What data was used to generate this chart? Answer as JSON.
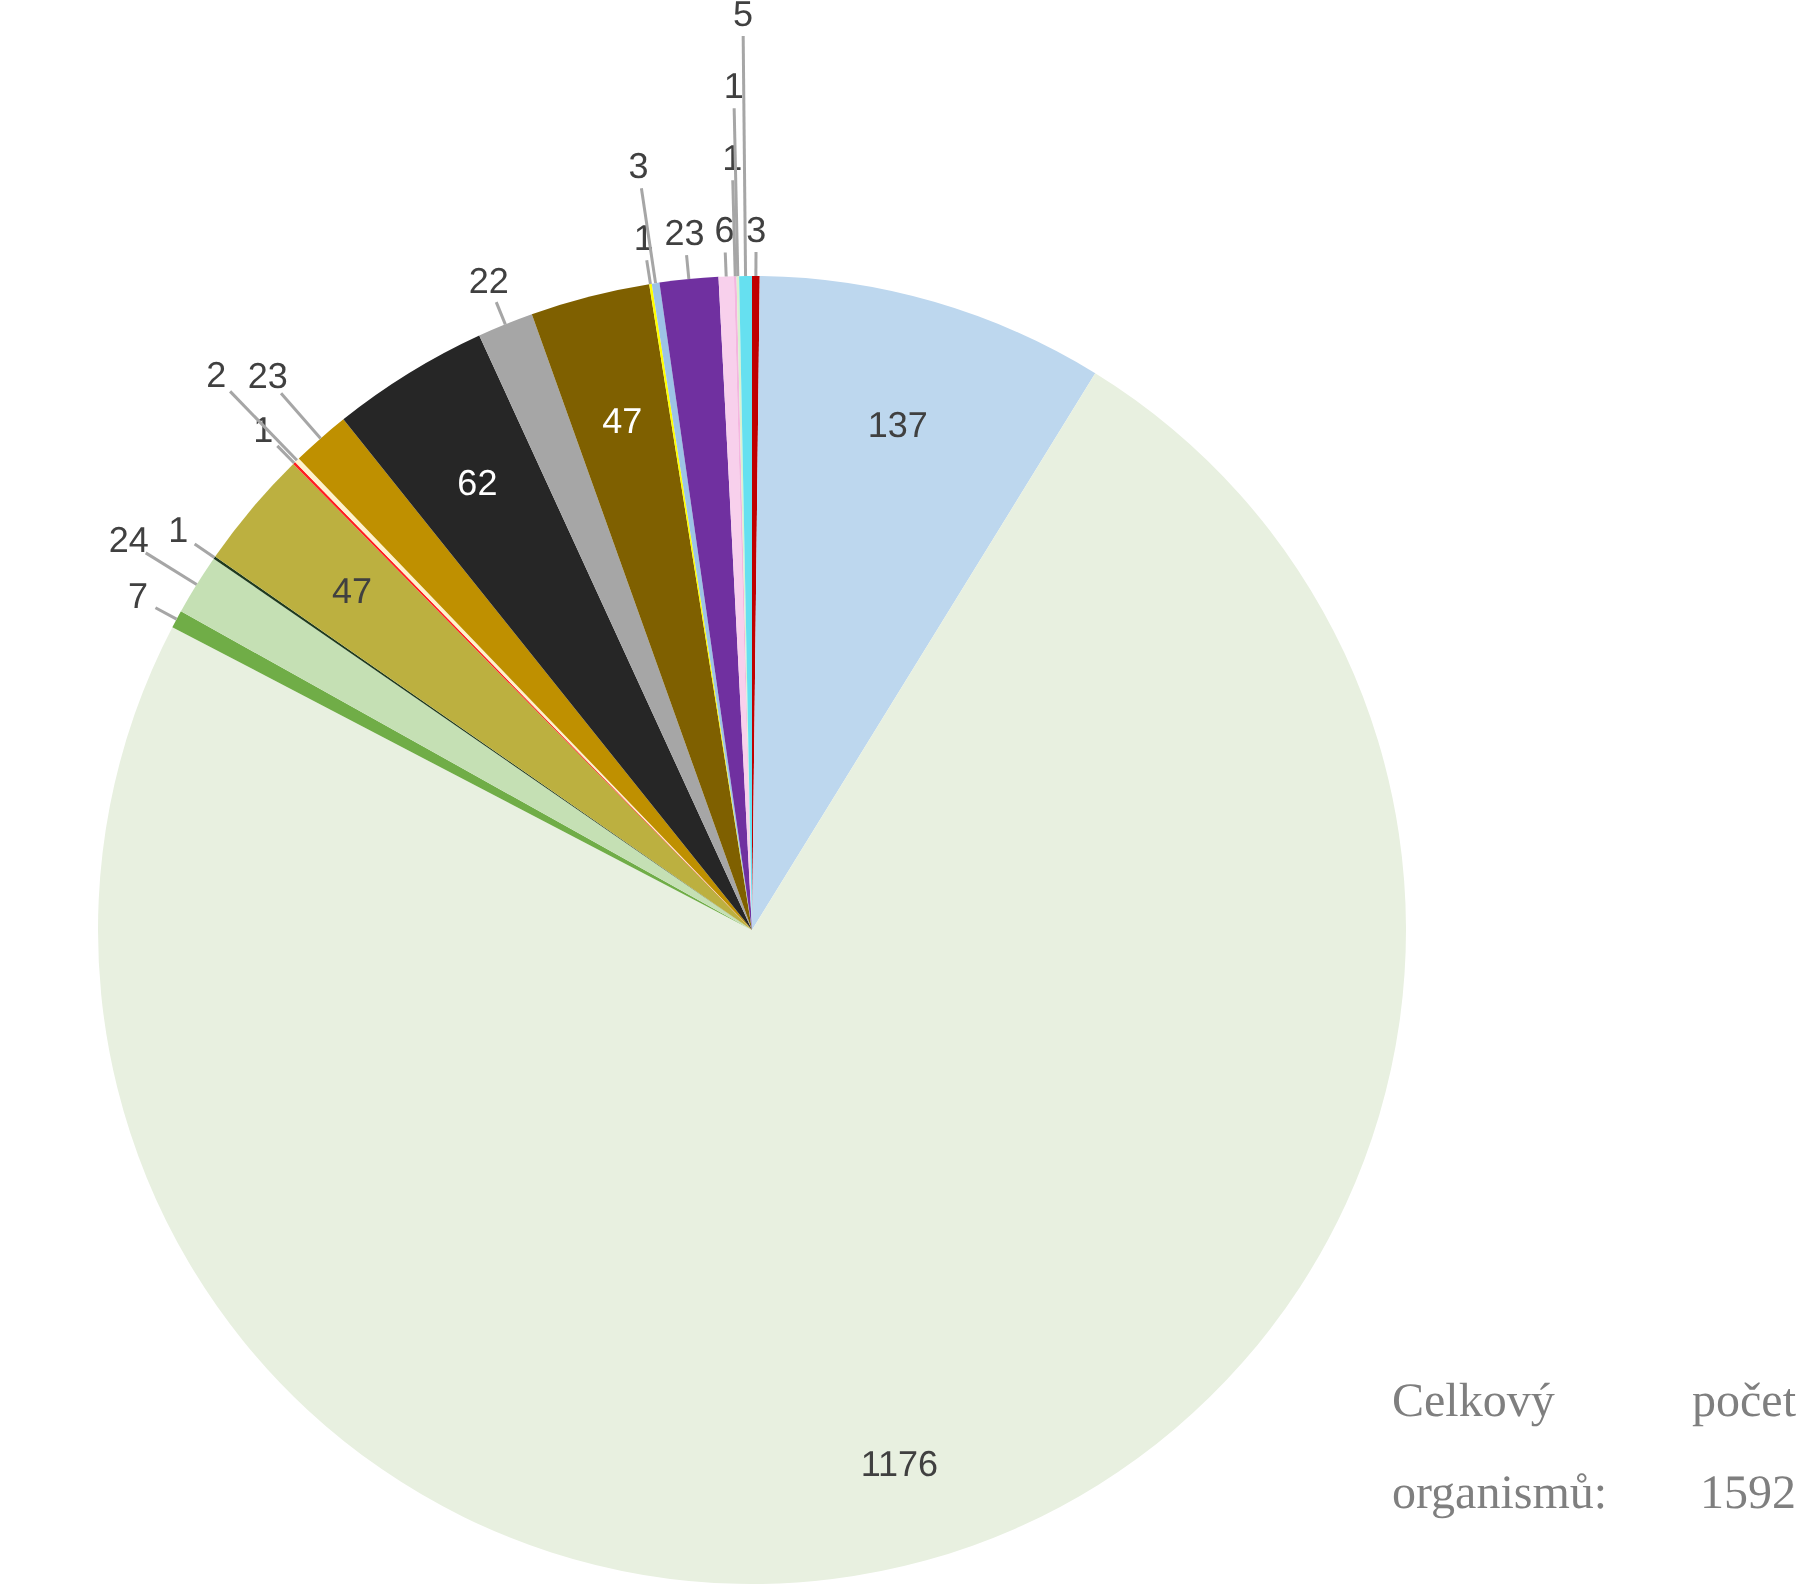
{
  "chart_data": {
    "type": "pie",
    "categories": [
      null,
      null,
      null,
      null,
      null,
      null,
      null,
      null,
      null,
      null,
      null,
      null,
      null,
      null,
      null,
      null,
      null,
      null,
      null,
      null
    ],
    "values": [
      3,
      137,
      1176,
      7,
      24,
      1,
      47,
      1,
      2,
      23,
      62,
      22,
      47,
      1,
      3,
      23,
      6,
      1,
      1,
      5
    ],
    "colors": [
      "#c00000",
      "#bdd7ee",
      "#e8f0e0",
      "#70ad47",
      "#c5e0b4",
      "#1e3a1e",
      "#bcb040",
      "#ff2020",
      "#fff2cc",
      "#bf9000",
      "#262626",
      "#a6a6a6",
      "#7f6000",
      "#ffff00",
      "#9dc3e6",
      "#7030a0",
      "#f8d0ec",
      "#f4b6e0",
      "#d9f2d0",
      "#66e0f0"
    ],
    "data_labels": true,
    "legend": false,
    "annotations": [
      "Celkový počet organismů: 1592"
    ]
  }
}
